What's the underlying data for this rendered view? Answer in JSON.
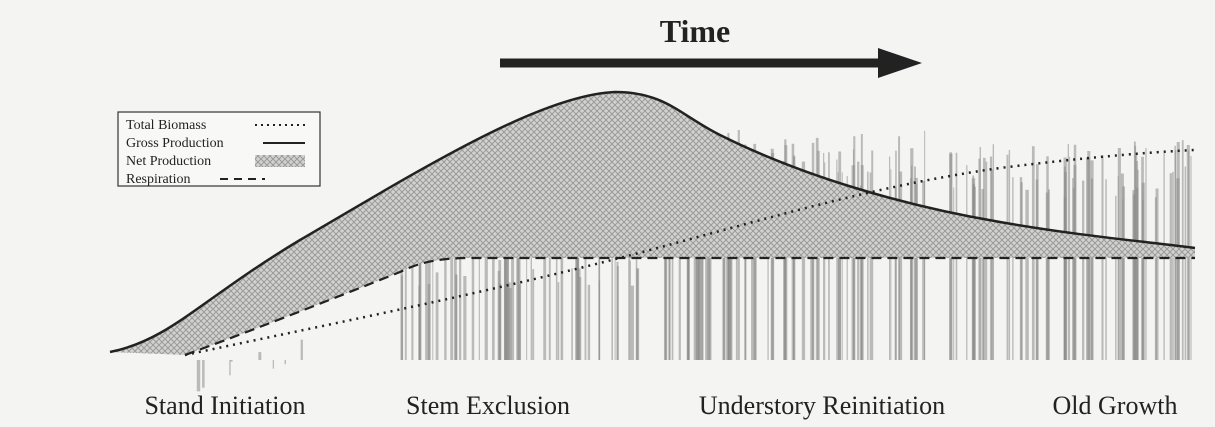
{
  "header": {
    "title": "Time"
  },
  "legend": {
    "items": [
      {
        "label": "Total Biomass"
      },
      {
        "label": "Gross Production"
      },
      {
        "label": "Net Production"
      },
      {
        "label": "Respiration"
      }
    ]
  },
  "stages": [
    "Stand Initiation",
    "Stem Exclusion",
    "Understory Reinitiation",
    "Old Growth"
  ]
}
